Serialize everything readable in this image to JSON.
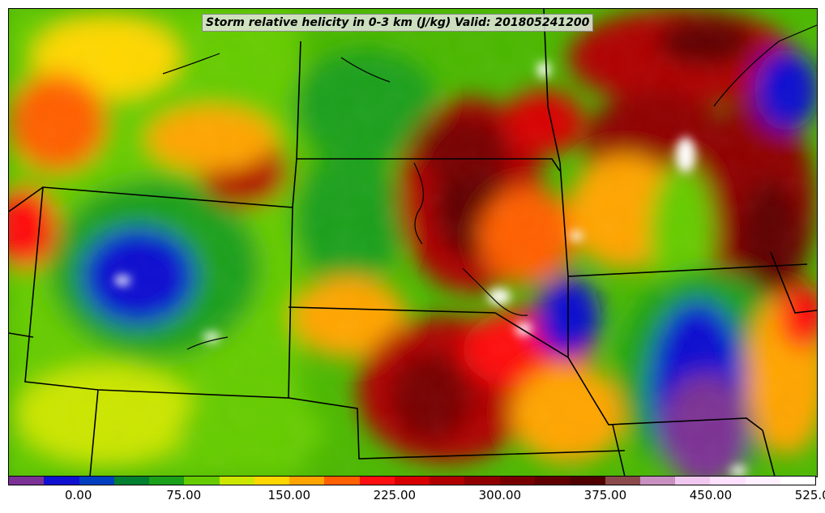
{
  "title": "Storm relative helicity in 0-3 km (J/kg) Valid: 201805241200",
  "colorbar": {
    "colors": [
      "#7b3294",
      "#1010d0",
      "#0040c0",
      "#008030",
      "#1aa01a",
      "#66cc00",
      "#cce600",
      "#ffd700",
      "#ffa500",
      "#ff6000",
      "#ff1010",
      "#d80000",
      "#b00000",
      "#900000",
      "#780000",
      "#600000",
      "#500000",
      "#8b4a4a",
      "#c890c0",
      "#f0c8f0",
      "#ffe0ff",
      "#fff0ff",
      "#ffffff"
    ],
    "tick_labels": [
      "0.00",
      "75.00",
      "150.00",
      "225.00",
      "300.00",
      "375.00",
      "450.00",
      "525.00"
    ],
    "tick_positions": [
      2,
      5,
      8,
      11,
      14,
      17,
      20,
      23
    ]
  },
  "legend_name": "srh-colorbar"
}
